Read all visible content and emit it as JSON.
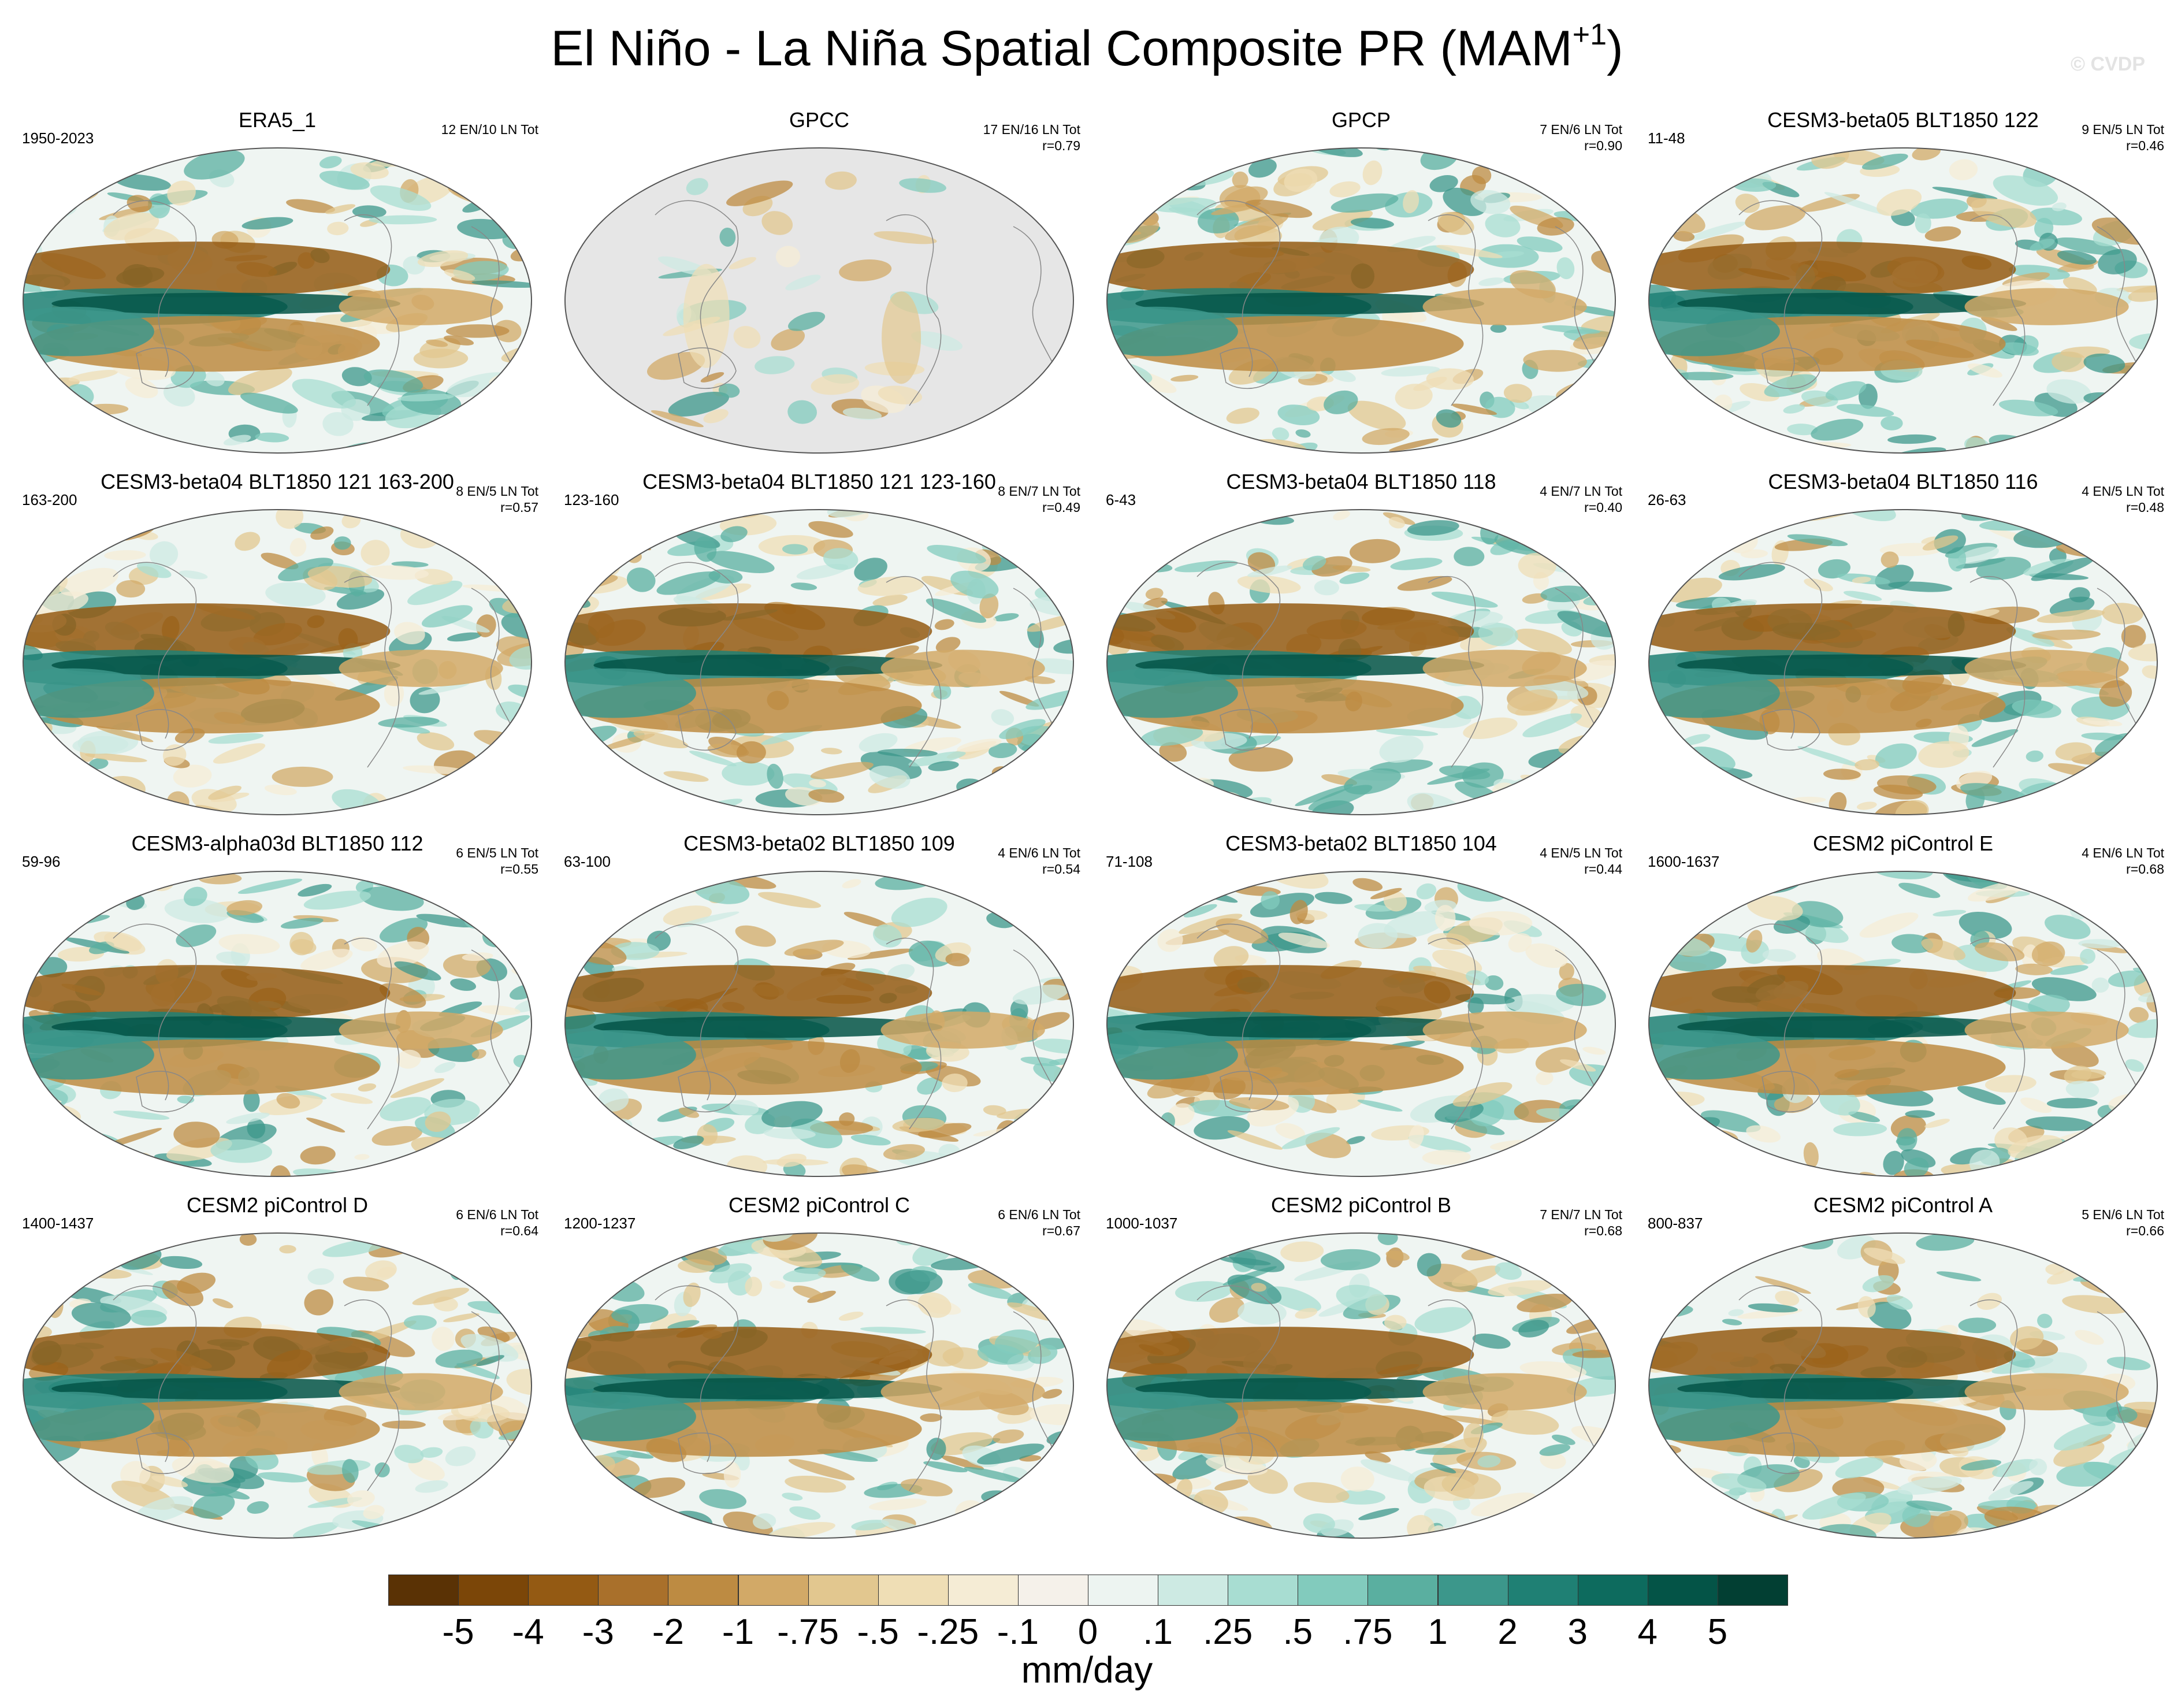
{
  "figure": {
    "title": "El Niño - La Niña Spatial Composite PR (MAM",
    "title_superscript": "+1",
    "title_close": ")",
    "watermark": "© CVDP",
    "units": "mm/day"
  },
  "colorbar": {
    "labels": [
      "-5",
      "-4",
      "-3",
      "-2",
      "-1",
      "-.75",
      "-.5",
      "-.25",
      "-.1",
      "0",
      ".1",
      ".25",
      ".5",
      ".75",
      "1",
      "2",
      "3",
      "4",
      "5"
    ],
    "colors": [
      "#5a3205",
      "#7b4608",
      "#945a13",
      "#a9702b",
      "#bd8b42",
      "#d2a967",
      "#e2c78f",
      "#efdeb5",
      "#f5ecd5",
      "#f5f1ea",
      "#edf4f1",
      "#cdeae3",
      "#a8ddd2",
      "#82cbbd",
      "#5aafa0",
      "#3c978b",
      "#1f8074",
      "#0d6b5e",
      "#045447",
      "#023f33"
    ]
  },
  "panels": [
    {
      "title": "ERA5_1",
      "years": "1950-2023",
      "counts": "12 EN/10 LN Tot",
      "r": ""
    },
    {
      "title": "GPCC",
      "years": "",
      "counts": "17 EN/16 LN Tot",
      "r": "r=0.79"
    },
    {
      "title": "GPCP",
      "years": "",
      "counts": "7 EN/6 LN Tot",
      "r": "r=0.90"
    },
    {
      "title": "CESM3-beta05 BLT1850 122",
      "years": "11-48",
      "counts": "9 EN/5 LN Tot",
      "r": "r=0.46"
    },
    {
      "title": "CESM3-beta04 BLT1850 121 163-200",
      "years": "163-200",
      "counts": "8 EN/5 LN Tot",
      "r": "r=0.57"
    },
    {
      "title": "CESM3-beta04 BLT1850 121 123-160",
      "years": "123-160",
      "counts": "8 EN/7 LN Tot",
      "r": "r=0.49"
    },
    {
      "title": "CESM3-beta04 BLT1850 118",
      "years": "6-43",
      "counts": "4 EN/7 LN Tot",
      "r": "r=0.40"
    },
    {
      "title": "CESM3-beta04 BLT1850 116",
      "years": "26-63",
      "counts": "4 EN/5 LN Tot",
      "r": "r=0.48"
    },
    {
      "title": "CESM3-alpha03d BLT1850 112",
      "years": "59-96",
      "counts": "6 EN/5 LN Tot",
      "r": "r=0.55"
    },
    {
      "title": "CESM3-beta02 BLT1850 109",
      "years": "63-100",
      "counts": "4 EN/6 LN Tot",
      "r": "r=0.54"
    },
    {
      "title": "CESM3-beta02 BLT1850 104",
      "years": "71-108",
      "counts": "4 EN/5 LN Tot",
      "r": "r=0.44"
    },
    {
      "title": "CESM2 piControl E",
      "years": "1600-1637",
      "counts": "4 EN/6 LN Tot",
      "r": "r=0.68"
    },
    {
      "title": "CESM2 piControl D",
      "years": "1400-1437",
      "counts": "6 EN/6 LN Tot",
      "r": "r=0.64"
    },
    {
      "title": "CESM2 piControl C",
      "years": "1200-1237",
      "counts": "6 EN/6 LN Tot",
      "r": "r=0.67"
    },
    {
      "title": "CESM2 piControl B",
      "years": "1000-1037",
      "counts": "7 EN/7 LN Tot",
      "r": "r=0.68"
    },
    {
      "title": "CESM2 piControl A",
      "years": "800-837",
      "counts": "5 EN/6 LN Tot",
      "r": "r=0.66"
    }
  ]
}
